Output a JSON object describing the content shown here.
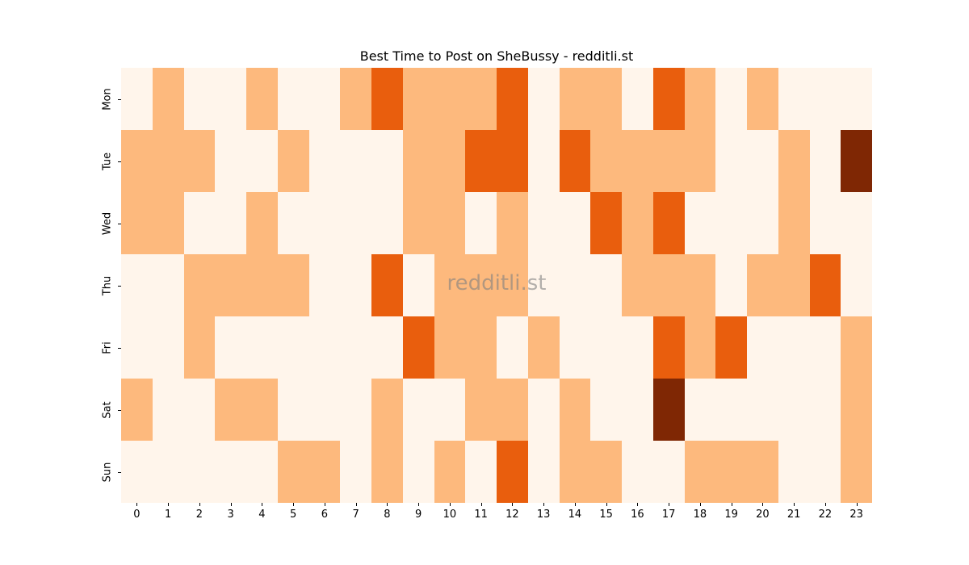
{
  "chart_data": {
    "type": "heatmap",
    "title": "Best Time to Post on SheBussy - redditli.st",
    "xlabel": "",
    "ylabel": "",
    "x": [
      "0",
      "1",
      "2",
      "3",
      "4",
      "5",
      "6",
      "7",
      "8",
      "9",
      "10",
      "11",
      "12",
      "13",
      "14",
      "15",
      "16",
      "17",
      "18",
      "19",
      "20",
      "21",
      "22",
      "23"
    ],
    "y": [
      "Mon",
      "Tue",
      "Wed",
      "Thu",
      "Fri",
      "Sat",
      "Sun"
    ],
    "colormap": "Oranges",
    "levels": {
      "0": "#fff5eb",
      "1": "#fdb97d",
      "2": "#e95e0d",
      "3": "#7f2704"
    },
    "values": [
      [
        0,
        1,
        0,
        0,
        1,
        0,
        0,
        1,
        2,
        1,
        1,
        1,
        2,
        0,
        1,
        1,
        0,
        2,
        1,
        0,
        1,
        0,
        0,
        0
      ],
      [
        1,
        1,
        1,
        0,
        0,
        1,
        0,
        0,
        0,
        1,
        1,
        2,
        2,
        0,
        2,
        1,
        1,
        1,
        1,
        0,
        0,
        1,
        0,
        3
      ],
      [
        1,
        1,
        0,
        0,
        1,
        0,
        0,
        0,
        0,
        1,
        1,
        0,
        1,
        0,
        0,
        2,
        1,
        2,
        0,
        0,
        0,
        1,
        0,
        0
      ],
      [
        0,
        0,
        1,
        1,
        1,
        1,
        0,
        0,
        2,
        0,
        1,
        1,
        1,
        0,
        0,
        0,
        1,
        1,
        1,
        0,
        1,
        1,
        2,
        0
      ],
      [
        0,
        0,
        1,
        0,
        0,
        0,
        0,
        0,
        0,
        2,
        1,
        1,
        0,
        1,
        0,
        0,
        0,
        2,
        1,
        2,
        0,
        0,
        0,
        1
      ],
      [
        1,
        0,
        0,
        1,
        1,
        0,
        0,
        0,
        1,
        0,
        0,
        1,
        1,
        0,
        1,
        0,
        0,
        3,
        0,
        0,
        0,
        0,
        0,
        1
      ],
      [
        0,
        0,
        0,
        0,
        0,
        1,
        1,
        0,
        1,
        0,
        1,
        0,
        2,
        0,
        1,
        1,
        0,
        0,
        1,
        1,
        1,
        0,
        0,
        1
      ]
    ],
    "grid": false,
    "legend": "none",
    "watermark": "redditli.st"
  }
}
